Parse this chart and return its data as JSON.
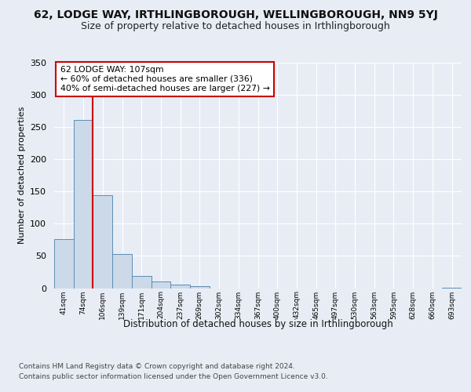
{
  "title": "62, LODGE WAY, IRTHLINGBOROUGH, WELLINGBOROUGH, NN9 5YJ",
  "subtitle": "Size of property relative to detached houses in Irthlingborough",
  "xlabel": "Distribution of detached houses by size in Irthlingborough",
  "ylabel": "Number of detached properties",
  "footer_line1": "Contains HM Land Registry data © Crown copyright and database right 2024.",
  "footer_line2": "Contains public sector information licensed under the Open Government Licence v3.0.",
  "bin_labels": [
    "41sqm",
    "74sqm",
    "106sqm",
    "139sqm",
    "171sqm",
    "204sqm",
    "237sqm",
    "269sqm",
    "302sqm",
    "334sqm",
    "367sqm",
    "400sqm",
    "432sqm",
    "465sqm",
    "497sqm",
    "530sqm",
    "563sqm",
    "595sqm",
    "628sqm",
    "660sqm",
    "693sqm"
  ],
  "bar_values": [
    76,
    261,
    144,
    53,
    19,
    10,
    5,
    3,
    0,
    0,
    0,
    0,
    0,
    0,
    0,
    0,
    0,
    0,
    0,
    0,
    1
  ],
  "bar_color": "#ccd9e8",
  "bar_edge_color": "#5b8db5",
  "property_label": "62 LODGE WAY: 107sqm",
  "annotation_line1": "← 60% of detached houses are smaller (336)",
  "annotation_line2": "40% of semi-detached houses are larger (227) →",
  "vline_x_index": 2,
  "vline_color": "#cc0000",
  "annotation_box_color": "#ffffff",
  "annotation_box_edge": "#cc0000",
  "ylim": [
    0,
    350
  ],
  "yticks": [
    0,
    50,
    100,
    150,
    200,
    250,
    300,
    350
  ],
  "background_color": "#e8edf5",
  "plot_bg_color": "#e8edf5",
  "title_fontsize": 10,
  "subtitle_fontsize": 9
}
